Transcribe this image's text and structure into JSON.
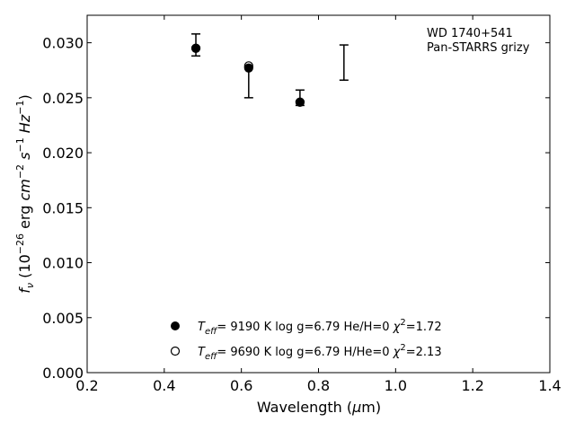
{
  "chart_data": {
    "type": "scatter",
    "title": "",
    "xlabel": "Wavelength (μm)",
    "ylabel": "f_ν (10^-26 erg cm^-2 s^-1 Hz^-1)",
    "xlim": [
      0.2,
      1.4
    ],
    "ylim": [
      0.0,
      0.0325
    ],
    "x_ticks": [
      0.2,
      0.4,
      0.6,
      0.8,
      1.0,
      1.2,
      1.4
    ],
    "x_tick_labels": [
      "0.2",
      "0.4",
      "0.6",
      "0.8",
      "1.0",
      "1.2",
      "1.4"
    ],
    "y_ticks": [
      0.0,
      0.005,
      0.01,
      0.015,
      0.02,
      0.025,
      0.03
    ],
    "y_tick_labels": [
      "0.000",
      "0.005",
      "0.010",
      "0.015",
      "0.020",
      "0.025",
      "0.030"
    ],
    "grid": false,
    "annotation": [
      "WD 1740+541",
      "Pan-STARRS grizy"
    ],
    "observed": [
      {
        "x": 0.482,
        "y": 0.0298,
        "ylow": 0.0288,
        "yhigh": 0.0308
      },
      {
        "x": 0.619,
        "y": 0.0264,
        "ylow": 0.025,
        "yhigh": 0.0278
      },
      {
        "x": 0.752,
        "y": 0.025,
        "ylow": 0.0243,
        "yhigh": 0.0257
      },
      {
        "x": 0.866,
        "y": 0.0282,
        "ylow": 0.0266,
        "yhigh": 0.0298
      }
    ],
    "series": [
      {
        "label_parts": {
          "teff": "9190 K",
          "logg": "log g=6.79",
          "comp": "He/H=0",
          "chi": "=1.72"
        },
        "marker": "filled-circle",
        "x": [
          0.482,
          0.619,
          0.752
        ],
        "y": [
          0.0295,
          0.0277,
          0.0246
        ]
      },
      {
        "label_parts": {
          "teff": "9690 K",
          "logg": "log g=6.79",
          "comp": "H/He=0",
          "chi": "=2.13"
        },
        "marker": "open-circle",
        "x": [
          0.482,
          0.619,
          0.752
        ],
        "y": [
          0.0295,
          0.0279,
          0.0246
        ]
      }
    ]
  }
}
